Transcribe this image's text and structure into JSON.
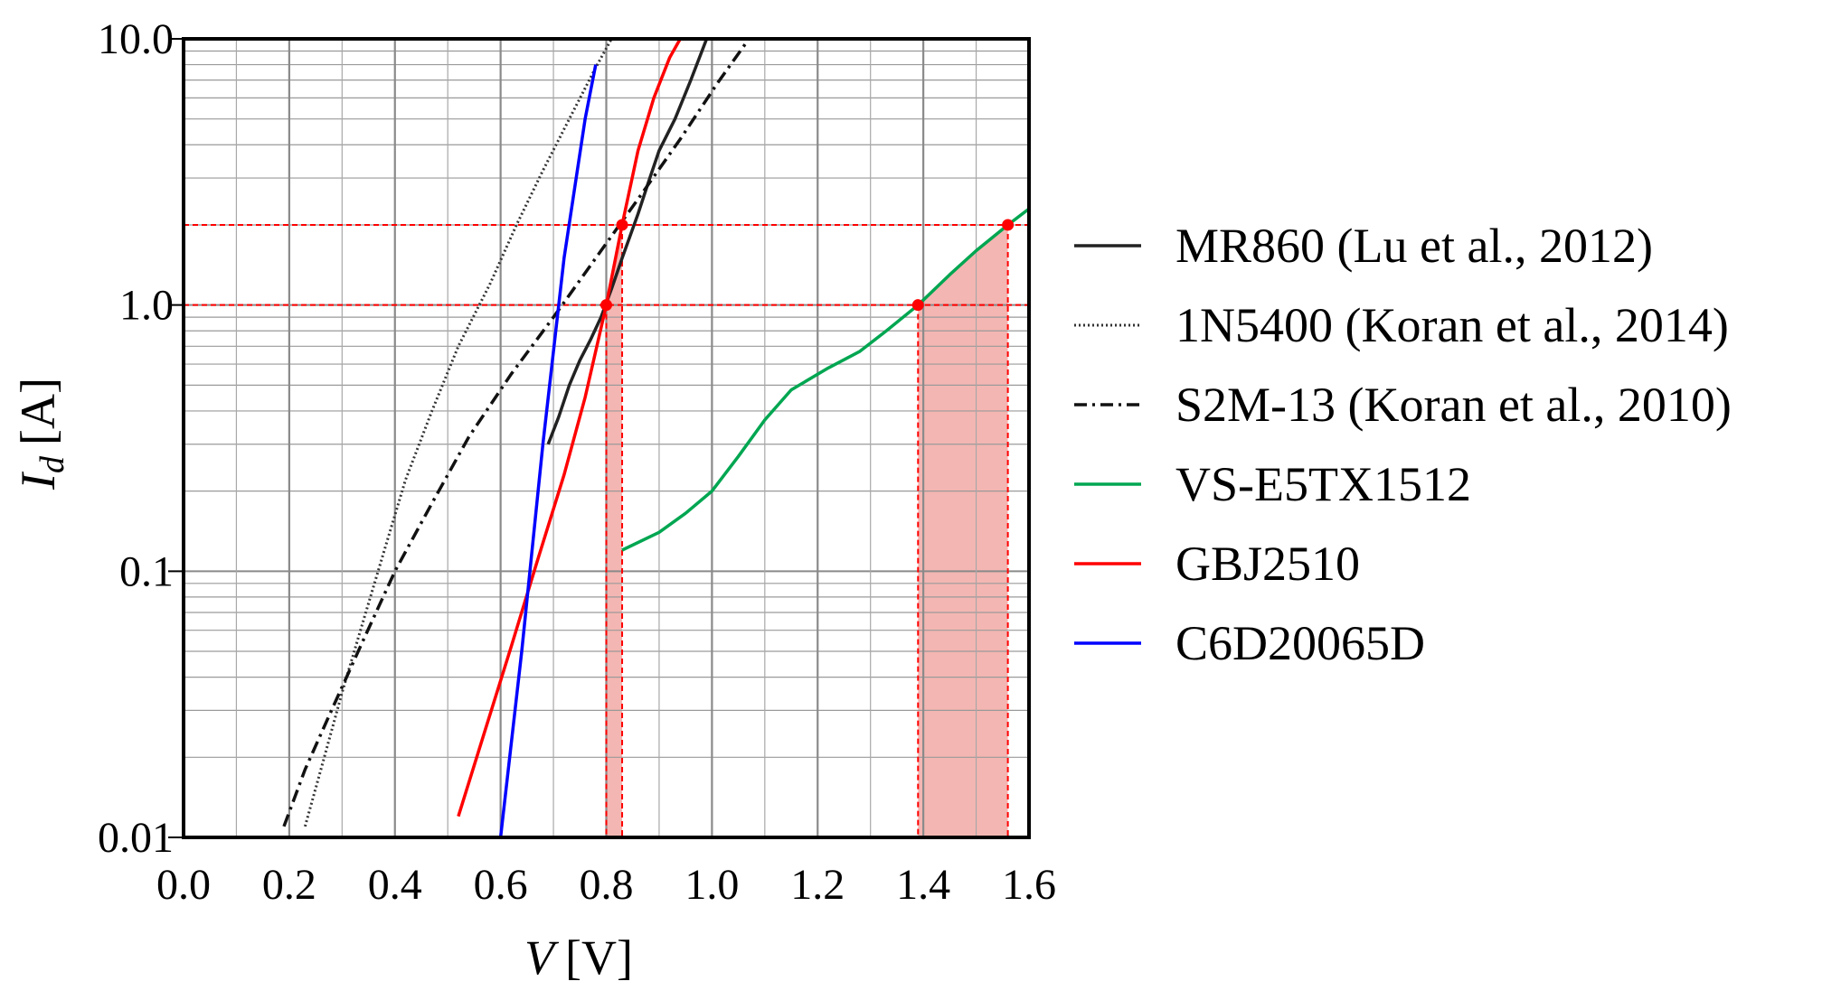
{
  "chart_data": {
    "type": "line",
    "title": "",
    "xlabel_symbol": "V",
    "xlabel_unit": "[V]",
    "ylabel_symbol": "I",
    "ylabel_subscript": "d",
    "ylabel_unit": "[A]",
    "xlim": [
      0.0,
      1.6
    ],
    "ylim": [
      0.01,
      10.0
    ],
    "yscale": "log",
    "grid": true,
    "x_ticks": [
      0.0,
      0.2,
      0.4,
      0.6,
      0.8,
      1.0,
      1.2,
      1.4,
      1.6
    ],
    "x_tick_labels": [
      "0.0",
      "0.2",
      "0.4",
      "0.6",
      "0.8",
      "1.0",
      "1.2",
      "1.4",
      "1.6"
    ],
    "y_ticks": [
      0.01,
      0.1,
      1.0,
      10.0
    ],
    "y_tick_labels": [
      "0.01",
      "0.1",
      "1.0",
      "10.0"
    ],
    "legend_position": "right",
    "series": [
      {
        "name": "MR860 (Lu et al., 2012)",
        "color": "#222222",
        "dash": "solid",
        "x": [
          0.69,
          0.71,
          0.73,
          0.75,
          0.77,
          0.79,
          0.81,
          0.83,
          0.86,
          0.88,
          0.9,
          0.93,
          0.96,
          0.99
        ],
        "y": [
          0.3,
          0.38,
          0.5,
          0.62,
          0.74,
          0.9,
          1.15,
          1.5,
          2.2,
          2.9,
          3.8,
          5.0,
          7.0,
          10.0
        ]
      },
      {
        "name": "1N5400 (Koran et al., 2014)",
        "color": "#333333",
        "dash": "dotted",
        "x": [
          0.23,
          0.26,
          0.3,
          0.34,
          0.38,
          0.42,
          0.47,
          0.52,
          0.58,
          0.63,
          0.68,
          0.73,
          0.78,
          0.81
        ],
        "y": [
          0.011,
          0.018,
          0.035,
          0.065,
          0.12,
          0.22,
          0.4,
          0.7,
          1.2,
          2.0,
          3.2,
          5.0,
          7.8,
          10.0
        ]
      },
      {
        "name": "S2M-13 (Koran et al., 2010)",
        "color": "#111111",
        "dash": "dashdot",
        "x": [
          0.19,
          0.23,
          0.28,
          0.34,
          0.4,
          0.47,
          0.54,
          0.62,
          0.7,
          0.78,
          0.86,
          0.94,
          1.01,
          1.07
        ],
        "y": [
          0.011,
          0.018,
          0.03,
          0.055,
          0.1,
          0.18,
          0.32,
          0.55,
          0.9,
          1.5,
          2.5,
          4.2,
          6.8,
          10.0
        ]
      },
      {
        "name": "VS-E5TX1512",
        "color": "#00A651",
        "dash": "solid",
        "x": [
          0.83,
          0.9,
          0.95,
          1.0,
          1.05,
          1.1,
          1.15,
          1.22,
          1.28,
          1.33,
          1.39,
          1.45,
          1.5,
          1.56,
          1.6
        ],
        "y": [
          0.12,
          0.14,
          0.165,
          0.2,
          0.27,
          0.37,
          0.48,
          0.58,
          0.67,
          0.8,
          1.0,
          1.3,
          1.6,
          2.0,
          2.3
        ]
      },
      {
        "name": "GBJ2510",
        "color": "#FF0000",
        "dash": "solid",
        "x": [
          0.52,
          0.57,
          0.62,
          0.67,
          0.72,
          0.76,
          0.8,
          0.83,
          0.86,
          0.89,
          0.92,
          0.94
        ],
        "y": [
          0.012,
          0.025,
          0.052,
          0.11,
          0.23,
          0.45,
          1.0,
          2.0,
          3.8,
          6.0,
          8.5,
          10.0
        ]
      },
      {
        "name": "C6D20065D",
        "color": "#0000FF",
        "dash": "solid",
        "x": [
          0.6,
          0.64,
          0.68,
          0.72,
          0.76,
          0.78
        ],
        "y": [
          0.01,
          0.05,
          0.3,
          1.5,
          5.0,
          8.0
        ]
      }
    ],
    "annotations": {
      "reference_currents": [
        1.0,
        2.0
      ],
      "reference_line_color": "#FF0000",
      "marker_color": "#FF0000",
      "fill_color": "#F4B6B2",
      "points": [
        {
          "series": "GBJ2510",
          "x": 0.8,
          "y": 1.0
        },
        {
          "series": "GBJ2510",
          "x": 0.83,
          "y": 2.0
        },
        {
          "series": "VS-E5TX1512",
          "x": 1.39,
          "y": 1.0
        },
        {
          "series": "VS-E5TX1512",
          "x": 1.56,
          "y": 2.0
        }
      ],
      "shaded_regions": [
        {
          "series": "GBJ2510",
          "x_from": 0.8,
          "x_to": 0.83
        },
        {
          "series": "VS-E5TX1512",
          "x_from": 1.39,
          "x_to": 1.56
        }
      ]
    }
  }
}
